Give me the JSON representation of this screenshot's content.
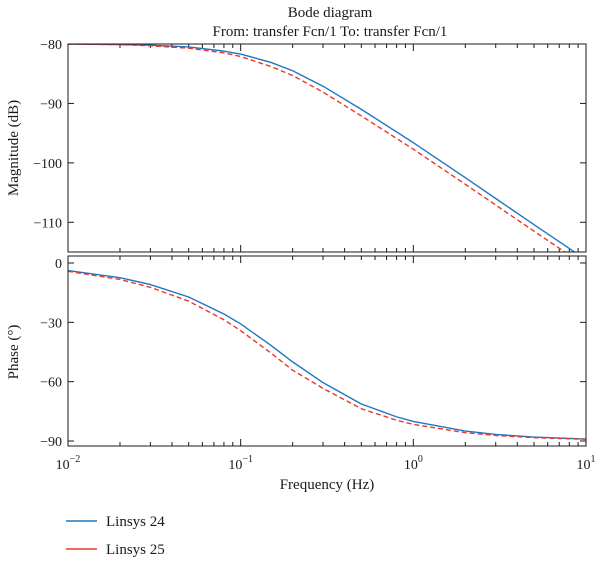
{
  "chart_data": {
    "type": "line",
    "title": "Bode diagram",
    "subtitle": "From: transfer Fcn/1  To: transfer Fcn/1",
    "xlabel": "Frequency (Hz)",
    "x_scale": "log",
    "xlim": [
      0.01,
      10
    ],
    "x_ticks": [
      {
        "value": 0.01,
        "base": "10",
        "exp": "−2"
      },
      {
        "value": 0.1,
        "base": "10",
        "exp": "−1"
      },
      {
        "value": 1,
        "base": "10",
        "exp": "0"
      },
      {
        "value": 10,
        "base": "10",
        "exp": "1"
      }
    ],
    "legend": {
      "placement": "bottom-left",
      "entries": [
        "Linsys 24",
        "Linsys 25"
      ]
    },
    "colors": {
      "linsys24": "#1f77c4",
      "linsys25": "#e8382e"
    },
    "panels": [
      {
        "name": "magnitude",
        "ylabel": "Magnitude (dB)",
        "ylim": [
          -115,
          -80
        ],
        "y_ticks": [
          "−80",
          "−90",
          "−100",
          "−110"
        ],
        "y_tick_values": [
          -80,
          -90,
          -100,
          -110
        ],
        "series": [
          {
            "name": "Linsys 24",
            "style": "solid",
            "x": [
              0.01,
              0.02,
              0.03,
              0.05,
              0.08,
              0.1,
              0.15,
              0.2,
              0.3,
              0.5,
              0.8,
              1,
              2,
              3,
              5,
              8,
              10
            ],
            "y": [
              -80.0,
              -80.1,
              -80.2,
              -80.5,
              -81.2,
              -81.7,
              -83.1,
              -84.5,
              -87.1,
              -91.0,
              -94.8,
              -96.6,
              -102.5,
              -106.0,
              -110.4,
              -114.4,
              -116.4
            ]
          },
          {
            "name": "Linsys 25",
            "style": "dashed",
            "x": [
              0.01,
              0.02,
              0.03,
              0.05,
              0.08,
              0.1,
              0.15,
              0.2,
              0.3,
              0.5,
              0.8,
              1,
              2,
              3,
              5,
              8,
              10
            ],
            "y": [
              -80.0,
              -80.1,
              -80.3,
              -80.7,
              -81.5,
              -82.1,
              -83.8,
              -85.3,
              -88.1,
              -92.1,
              -95.9,
              -97.7,
              -103.6,
              -107.1,
              -111.5,
              -115.5,
              -117.5
            ]
          }
        ]
      },
      {
        "name": "phase",
        "ylabel": "Phase (°)",
        "ylim": [
          -90,
          0
        ],
        "y_ticks": [
          "0",
          "−30",
          "−60",
          "−90"
        ],
        "y_tick_values": [
          0,
          -30,
          -60,
          -90
        ],
        "series": [
          {
            "name": "Linsys 24",
            "style": "solid",
            "x": [
              0.01,
              0.02,
              0.03,
              0.05,
              0.08,
              0.1,
              0.15,
              0.2,
              0.3,
              0.5,
              0.8,
              1,
              2,
              3,
              5,
              8,
              10
            ],
            "y": [
              -3.8,
              -7.4,
              -10.9,
              -17.2,
              -25.8,
              -30.8,
              -41.7,
              -50.0,
              -60.5,
              -71.3,
              -77.8,
              -80.1,
              -85.0,
              -86.7,
              -88.0,
              -88.7,
              -89.0
            ]
          },
          {
            "name": "Linsys 25",
            "style": "dashed",
            "x": [
              0.01,
              0.02,
              0.03,
              0.05,
              0.08,
              0.1,
              0.15,
              0.2,
              0.3,
              0.5,
              0.8,
              1,
              2,
              3,
              5,
              8,
              10
            ],
            "y": [
              -4.2,
              -8.3,
              -12.3,
              -19.3,
              -28.7,
              -34.2,
              -45.6,
              -54.2,
              -63.4,
              -73.7,
              -79.5,
              -81.6,
              -85.8,
              -87.2,
              -88.3,
              -88.9,
              -89.1
            ]
          }
        ]
      }
    ]
  }
}
